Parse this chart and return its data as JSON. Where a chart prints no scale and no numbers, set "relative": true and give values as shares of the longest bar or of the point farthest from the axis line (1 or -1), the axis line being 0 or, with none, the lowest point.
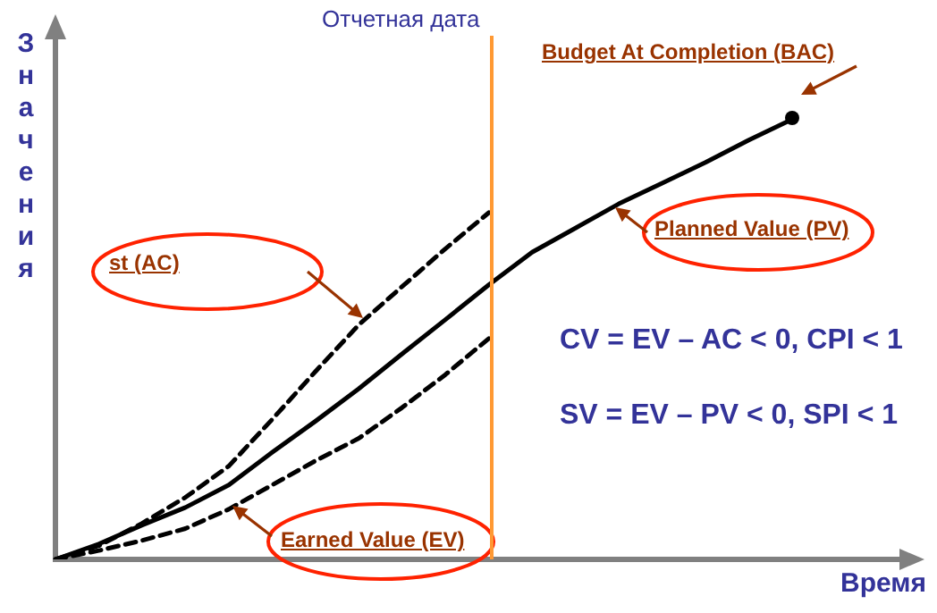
{
  "chart_data": {
    "type": "line",
    "relative": true,
    "xlabel": "Время",
    "ylabel": "Значения",
    "categories": [
      null,
      null,
      null,
      null,
      null,
      null,
      null,
      null,
      null,
      null,
      null,
      null,
      null,
      null,
      null,
      null,
      null,
      null
    ],
    "series": [
      {
        "color": "#000000",
        "line_style": "solid",
        "marker": "none",
        "values": [
          0,
          0.035,
          0.078,
          0.118,
          0.169,
          0.243,
          0.314,
          0.388,
          0.467,
          0.545,
          0.624,
          0.698,
          0.753,
          0.808,
          0.855,
          0.902,
          0.953,
          1
        ]
      },
      {
        "color": "#000000",
        "line_style": "dashed",
        "marker": "none",
        "values": [
          0,
          0.031,
          0.082,
          0.141,
          0.212,
          0.318,
          0.427,
          0.533,
          0.62,
          0.706,
          0.788,
          null,
          null,
          null,
          null,
          null,
          null,
          null
        ]
      },
      {
        "color": "#000000",
        "line_style": "dashed",
        "marker": "none",
        "values": [
          0,
          0.02,
          0.043,
          0.07,
          0.114,
          0.169,
          0.224,
          0.275,
          0.345,
          0.42,
          0.502,
          null,
          null,
          null,
          null,
          null,
          null,
          null
        ]
      }
    ],
    "annotations": [
      "Budget At Completion (BAC)",
      "Planned Value (PV)",
      "st (AC)",
      "Earned Value (EV)",
      "CV = EV – AC < 0, CPI < 1",
      "SV = EV – PV < 0, SPI < 1",
      "Отчетная дата"
    ],
    "grid": false,
    "legend": false
  }
}
